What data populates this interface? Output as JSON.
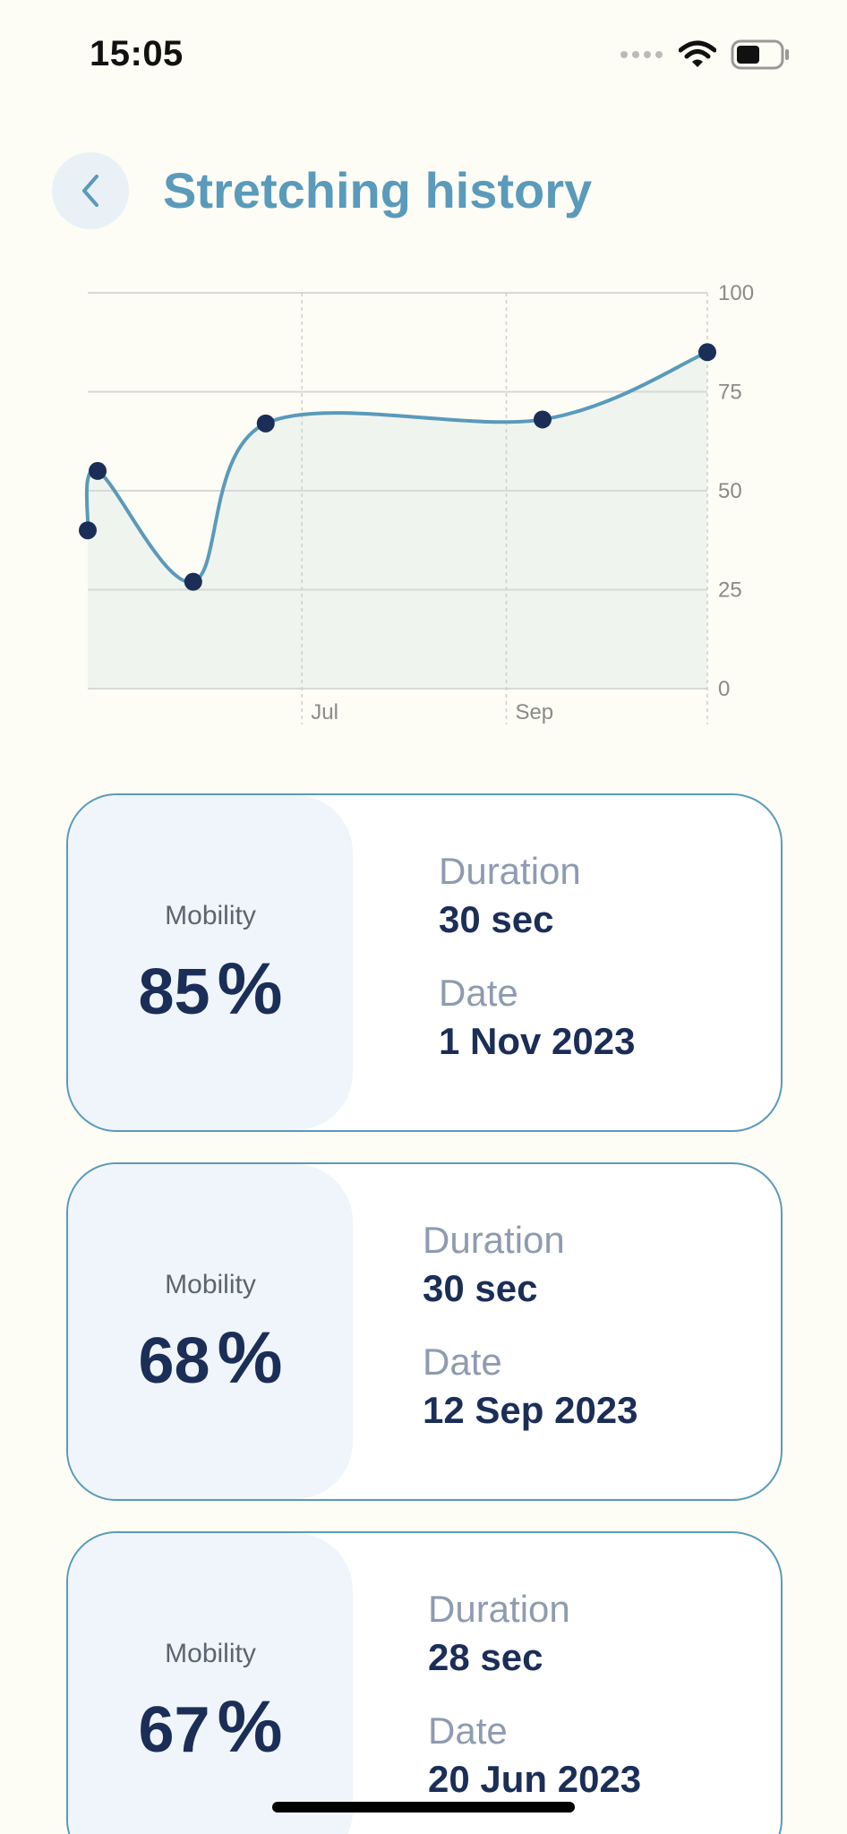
{
  "status_bar": {
    "time": "15:05"
  },
  "header": {
    "title": "Stretching history"
  },
  "chart_data": {
    "type": "area",
    "x": [
      "2023-04-27",
      "2023-04-30",
      "2023-05-29",
      "2023-06-20",
      "2023-09-12",
      "2023-11-01"
    ],
    "values": [
      40,
      55,
      27,
      67,
      68,
      85
    ],
    "x_tick_labels": [
      "Jul",
      "Sep"
    ],
    "y_ticks": [
      0,
      25,
      50,
      75,
      100
    ],
    "ylim": [
      0,
      100
    ],
    "grid": true,
    "y_axis_position": "right",
    "colors": {
      "line": "#5a9abb",
      "fill": "#edf2ed",
      "point": "#1b2e58"
    }
  },
  "cards": [
    {
      "mobility_label": "Mobility",
      "mobility_value": "85",
      "unit": "%",
      "duration_label": "Duration",
      "duration": "30 sec",
      "date_label": "Date",
      "date": "1 Nov 2023"
    },
    {
      "mobility_label": "Mobility",
      "mobility_value": "68",
      "unit": "%",
      "duration_label": "Duration",
      "duration": "30 sec",
      "date_label": "Date",
      "date": "12 Sep 2023"
    },
    {
      "mobility_label": "Mobility",
      "mobility_value": "67",
      "unit": "%",
      "duration_label": "Duration",
      "duration": "28 sec",
      "date_label": "Date",
      "date": "20 Jun 2023"
    }
  ],
  "icons": {
    "back": "chevron-left-icon",
    "signal": "signal-icon",
    "wifi": "wifi-icon",
    "battery": "battery-icon"
  }
}
